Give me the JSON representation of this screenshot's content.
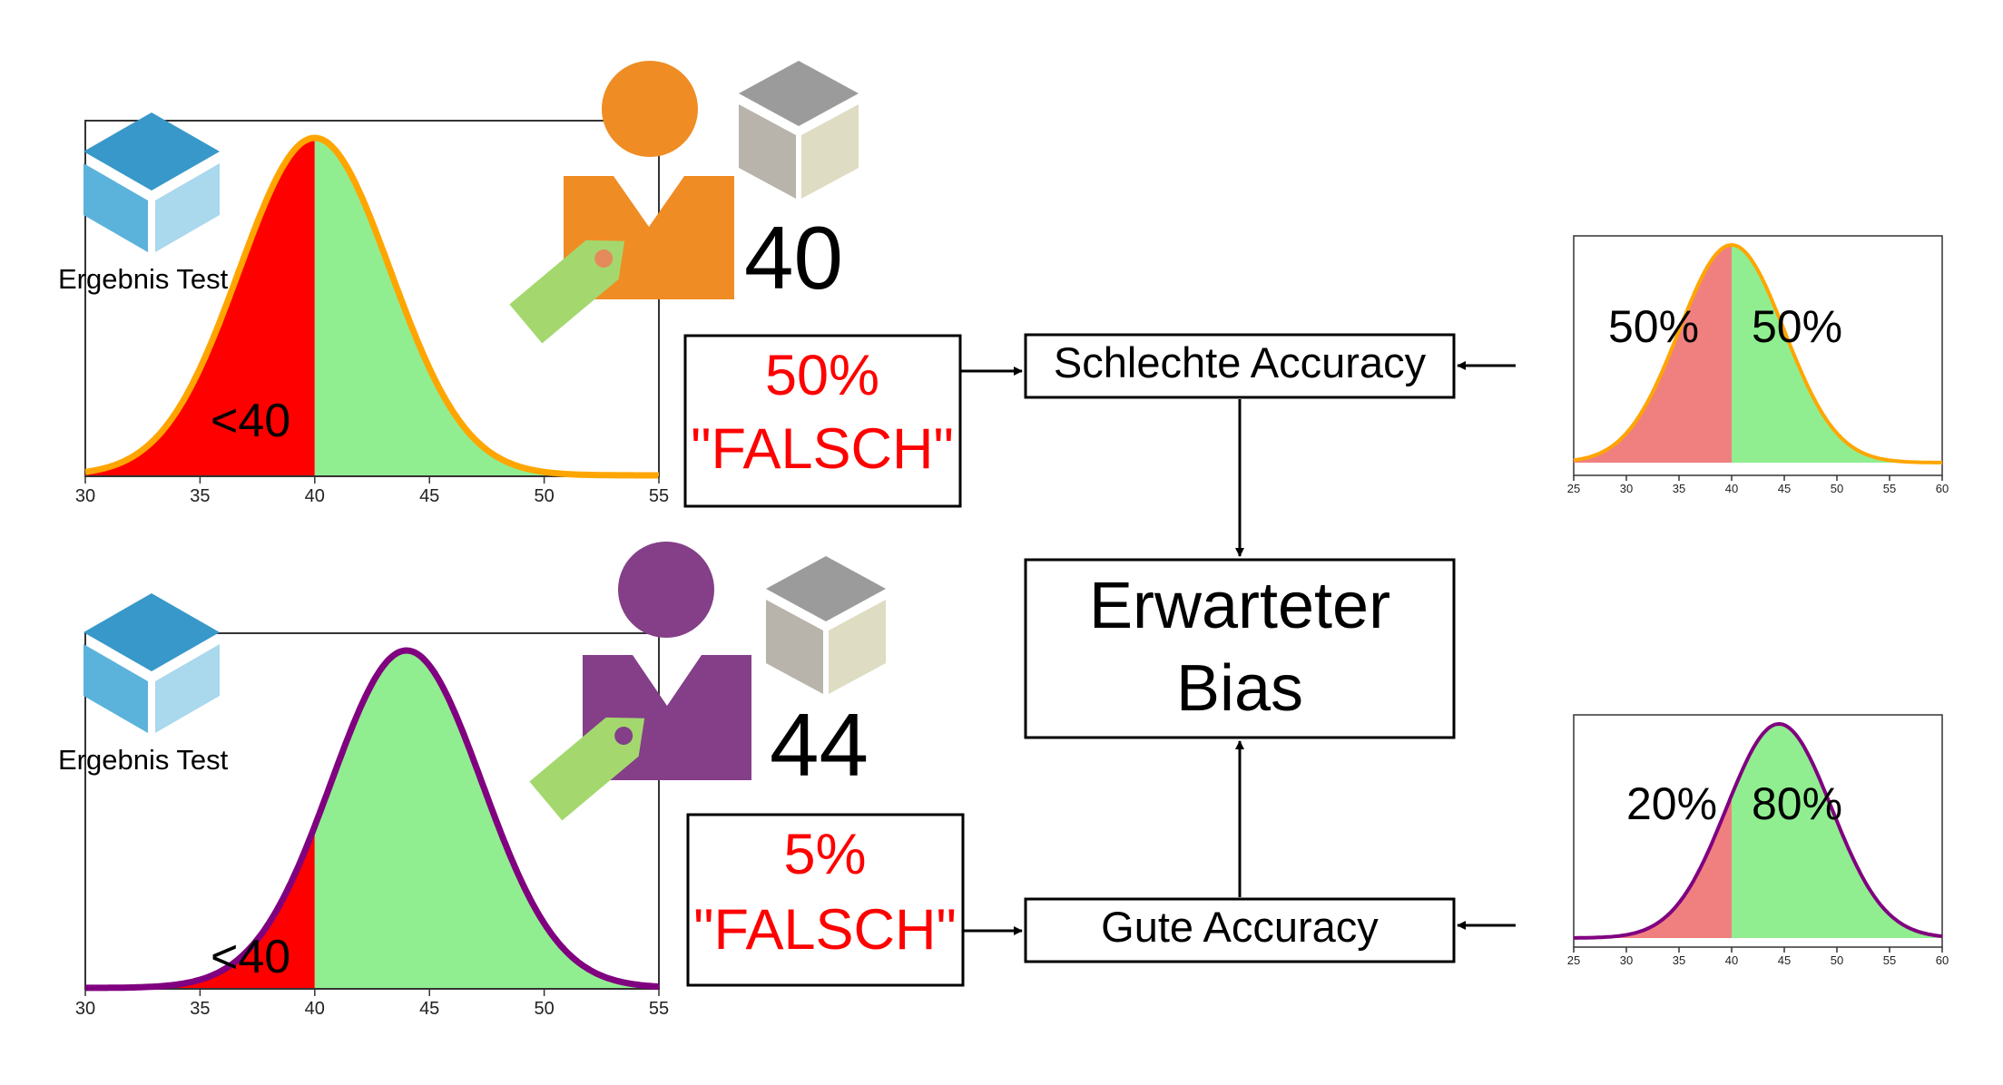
{
  "top_panel": {
    "caption": "Ergebnis Test",
    "region_label": "<40",
    "score": "40",
    "ticks": [
      "30",
      "35",
      "40",
      "45",
      "50",
      "55"
    ],
    "colors": {
      "curve": "#ffa500",
      "below": "#ff0000",
      "above": "#90ee90",
      "person": "#ef8c24"
    }
  },
  "bottom_panel": {
    "caption": "Ergebnis Test",
    "region_label": "<40",
    "score": "44",
    "ticks": [
      "30",
      "35",
      "40",
      "45",
      "50",
      "55"
    ],
    "colors": {
      "curve": "#800080",
      "below": "#ff0000",
      "above": "#90ee90",
      "person": "#843f88"
    }
  },
  "top_error": {
    "percent": "50%",
    "label": "\"FALSCH\""
  },
  "bottom_error": {
    "percent": "5%",
    "label": "\"FALSCH\""
  },
  "flow": {
    "bad_accuracy": "Schlechte Accuracy",
    "good_accuracy": "Gute Accuracy",
    "bias_line1": "Erwarteter",
    "bias_line2": "Bias"
  },
  "right_top": {
    "left_pct": "50%",
    "right_pct": "50%",
    "ticks": [
      "25",
      "30",
      "35",
      "40",
      "45",
      "50",
      "55",
      "60"
    ]
  },
  "right_bottom": {
    "left_pct": "20%",
    "right_pct": "80%",
    "ticks": [
      "25",
      "30",
      "35",
      "40",
      "45",
      "50",
      "55",
      "60"
    ]
  },
  "chart_data": [
    {
      "type": "area",
      "mean": 40,
      "xlim": [
        30,
        55
      ],
      "threshold": 40,
      "below_fraction": 0.5
    },
    {
      "type": "area",
      "mean": 44,
      "xlim": [
        30,
        55
      ],
      "threshold": 40,
      "below_fraction": 0.05
    },
    {
      "type": "area",
      "mean": 40,
      "xlim": [
        25,
        60
      ],
      "threshold": 40,
      "below_fraction": 0.5
    },
    {
      "type": "area",
      "mean": 44.5,
      "xlim": [
        25,
        60
      ],
      "threshold": 40,
      "below_fraction": 0.2
    }
  ]
}
